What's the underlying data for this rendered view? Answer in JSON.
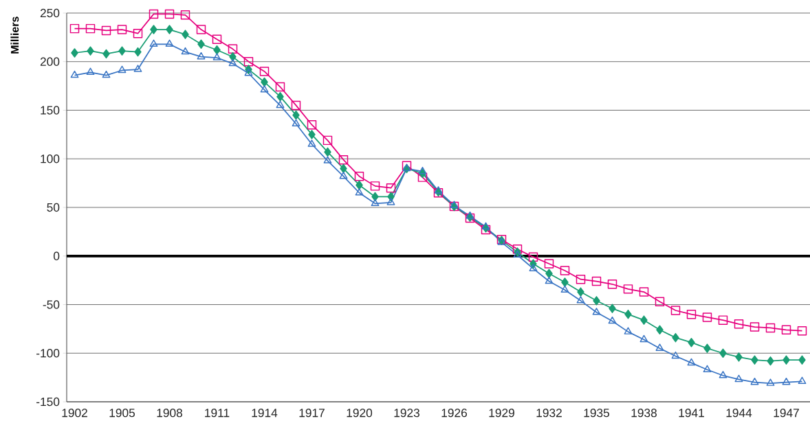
{
  "chart_data": {
    "type": "line",
    "ylabel": "Milliers",
    "categories": [
      "1902",
      null,
      null,
      "1905",
      null,
      null,
      "1908",
      null,
      null,
      "1911",
      null,
      null,
      "1914",
      null,
      null,
      "1917",
      null,
      null,
      "1920",
      null,
      null,
      "1923",
      null,
      null,
      "1926",
      null,
      null,
      "1929",
      null,
      null,
      "1932",
      null,
      null,
      "1935",
      null,
      null,
      "1938",
      null,
      null,
      "1941",
      null,
      null,
      "1944",
      null,
      null,
      "1947",
      null
    ],
    "series": [
      {
        "color": "#e6007e",
        "marker": "square",
        "values": [
          234,
          234,
          232,
          233,
          229,
          249,
          249,
          248,
          233,
          223,
          213,
          200,
          190,
          174,
          155,
          135,
          119,
          99,
          82,
          72,
          70,
          93,
          81,
          65,
          51,
          39,
          27,
          17,
          7,
          -1,
          -8,
          -15,
          -24,
          -26,
          -29,
          -34,
          -37,
          -47,
          -56,
          -60,
          -63,
          -66,
          -70,
          -73,
          -74,
          -76,
          -77
        ]
      },
      {
        "color": "#1a9e74",
        "marker": "diamond",
        "values": [
          209,
          211,
          208,
          211,
          210,
          233,
          233,
          228,
          218,
          212,
          205,
          192,
          179,
          164,
          145,
          125,
          107,
          90,
          73,
          61,
          61,
          90,
          85,
          66,
          51,
          40,
          29,
          16,
          4,
          -8,
          -18,
          -27,
          -37,
          -46,
          -54,
          -60,
          -66,
          -76,
          -84,
          -89,
          -95,
          -100,
          -104,
          -107,
          -108,
          -107,
          -107
        ]
      },
      {
        "color": "#3a75c4",
        "marker": "triangle",
        "values": [
          186,
          189,
          186,
          191,
          192,
          218,
          218,
          210,
          205,
          204,
          198,
          188,
          171,
          155,
          136,
          115,
          98,
          82,
          65,
          54,
          55,
          90,
          87,
          67,
          52,
          41,
          30,
          14,
          1,
          -13,
          -26,
          -35,
          -46,
          -58,
          -67,
          -78,
          -86,
          -95,
          -103,
          -110,
          -117,
          -123,
          -127,
          -130,
          -131,
          -130,
          -129
        ]
      }
    ],
    "ylim": [
      -150,
      250
    ],
    "yticks": [
      -150,
      -100,
      -50,
      0,
      50,
      100,
      150,
      200,
      250
    ],
    "grid": "y",
    "line_style": "solid",
    "ref_lines": [
      {
        "axis": "y",
        "value": 0,
        "color": "#000000"
      }
    ]
  }
}
